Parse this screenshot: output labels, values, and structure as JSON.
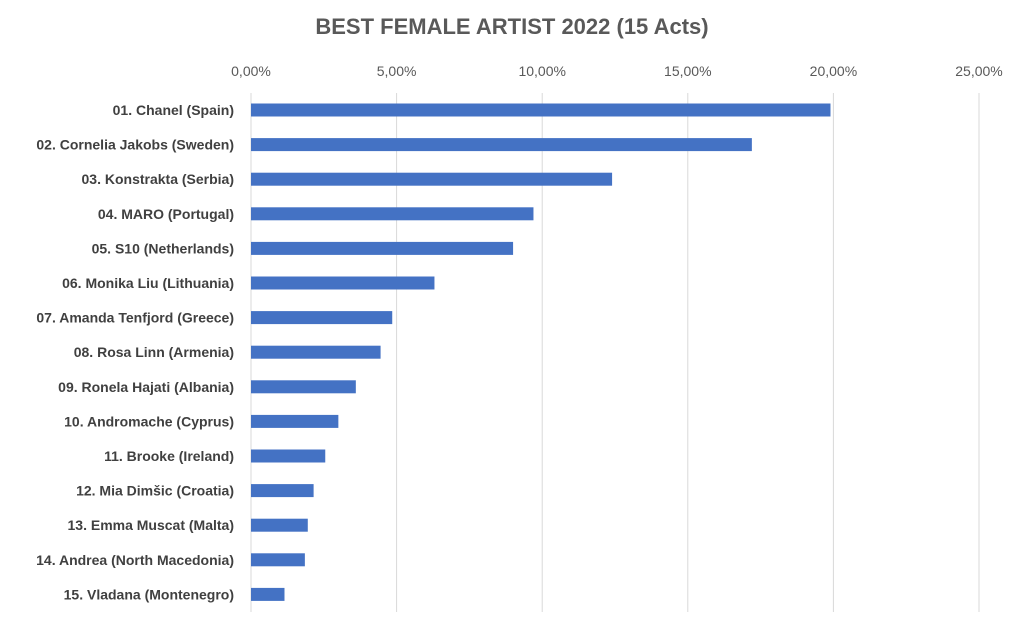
{
  "chart_data": {
    "type": "bar",
    "orientation": "horizontal",
    "title": "BEST FEMALE ARTIST 2022  (15 Acts)",
    "xlabel": "",
    "ylabel": "",
    "xlim": [
      0,
      25
    ],
    "x_ticks": [
      0,
      5,
      10,
      15,
      20,
      25
    ],
    "x_tick_labels": [
      "0,00%",
      "5,00%",
      "10,00%",
      "15,00%",
      "20,00%",
      "25,00%"
    ],
    "x_axis_position": "top",
    "grid": true,
    "legend": "none",
    "bar_color": "#4472C4",
    "categories": [
      "01. Chanel (Spain)",
      "02. Cornelia Jakobs (Sweden)",
      "03. Konstrakta (Serbia)",
      "04. MARO (Portugal)",
      "05. S10 (Netherlands)",
      "06. Monika Liu (Lithuania)",
      "07. Amanda Tenfjord (Greece)",
      "08. Rosa Linn (Armenia)",
      "09. Ronela Hajati (Albania)",
      "10. Andromache (Cyprus)",
      "11. Brooke (Ireland)",
      "12. Mia Dimšic (Croatia)",
      "13. Emma Muscat (Malta)",
      "14. Andrea (North Macedonia)",
      "15. Vladana (Montenegro)"
    ],
    "values": [
      19.9,
      17.2,
      12.4,
      9.7,
      9.0,
      6.3,
      4.85,
      4.45,
      3.6,
      3.0,
      2.55,
      2.15,
      1.95,
      1.85,
      1.15
    ]
  }
}
